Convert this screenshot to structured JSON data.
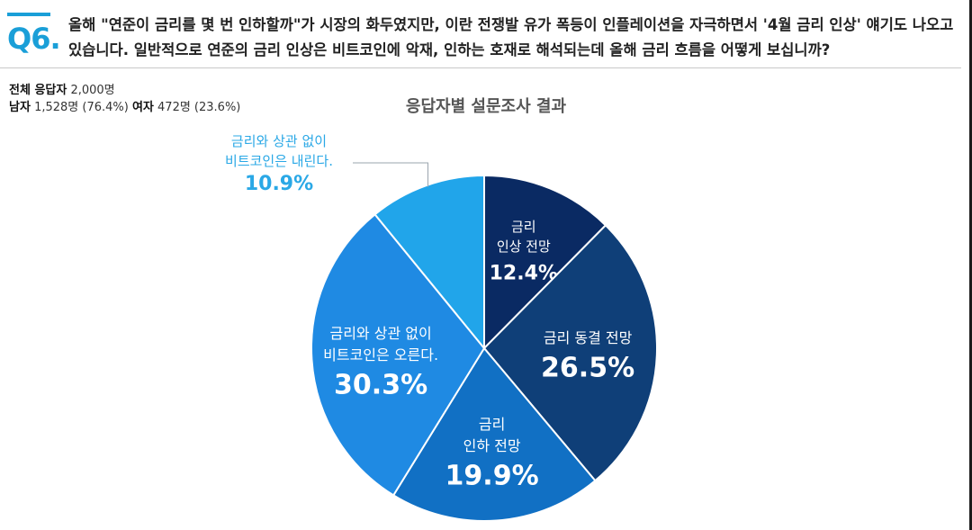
{
  "question": {
    "number": "Q6.",
    "text": "올해 \"연준이 금리를 몇 번 인하할까\"가 시장의 화두였지만, 이란 전쟁발 유가 폭등이 인플레이션을 자극하면서 '4월 금리 인상' 얘기도 나오고 있습니다. 일반적으로 연준의 금리 인상은 비트코인에 악재, 인하는 호재로 해석되는데 올해 금리 흐름을 어떻게 보십니까?"
  },
  "respondents": {
    "total_label": "전체 응답자",
    "total_value": "2,000명",
    "male_label": "남자",
    "male_value": "1,528명 (76.4%)",
    "female_label": "여자",
    "female_value": "472명 (23.6%)"
  },
  "colors": {
    "accent": "#1a9fd8",
    "slice_raise": "#0a2a63",
    "slice_hold": "#0f3f78",
    "slice_cut": "#1170c4",
    "slice_up_regardless": "#1f8ae3",
    "slice_down_regardless": "#21a5ea",
    "external_label": "#2aa8e6"
  },
  "chart_data": {
    "type": "pie",
    "title": "응답자별 설문조사 결과",
    "slices": [
      {
        "lines": [
          "금리",
          "인상 전망"
        ],
        "value": 12.4,
        "pct": "12.4%"
      },
      {
        "lines": [
          "금리 동결 전망"
        ],
        "value": 26.5,
        "pct": "26.5%"
      },
      {
        "lines": [
          "금리",
          "인하 전망"
        ],
        "value": 19.9,
        "pct": "19.9%"
      },
      {
        "lines": [
          "금리와 상관 없이",
          "비트코인은 오른다."
        ],
        "value": 30.3,
        "pct": "30.3%"
      },
      {
        "lines": [
          "금리와 상관 없이",
          "비트코인은 내린다."
        ],
        "value": 10.9,
        "pct": "10.9%"
      }
    ]
  }
}
